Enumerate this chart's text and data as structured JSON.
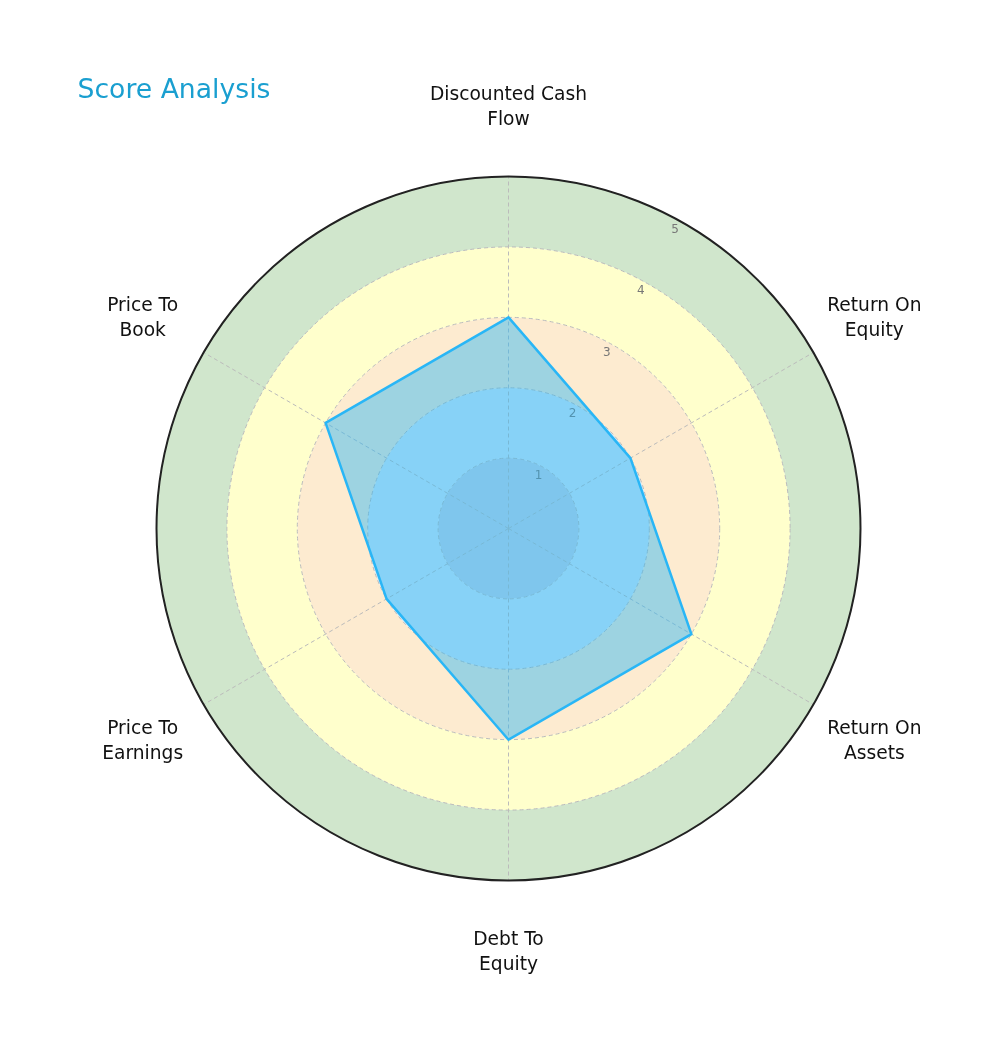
{
  "chart_data": {
    "type": "radar",
    "title": "Score Analysis",
    "categories": [
      "Discounted Cash\nFlow",
      "Return On\nEquity",
      "Return On\nAssets",
      "Debt To\nEquity",
      "Price To\nEarnings",
      "Price To\nBook"
    ],
    "series": [
      {
        "color": "#29b6f6",
        "values": [
          3,
          2,
          3,
          3,
          2,
          3
        ]
      }
    ],
    "ylim": [
      0,
      5
    ],
    "yticks": [
      1,
      2,
      3,
      4,
      5
    ],
    "grid": true,
    "marker": "none",
    "line_style": "solid",
    "colors": [
      "#c6d4e6",
      "#d6eaf8",
      "#fdebd0",
      "#ffffcc",
      "#d0e6cc"
    ]
  }
}
